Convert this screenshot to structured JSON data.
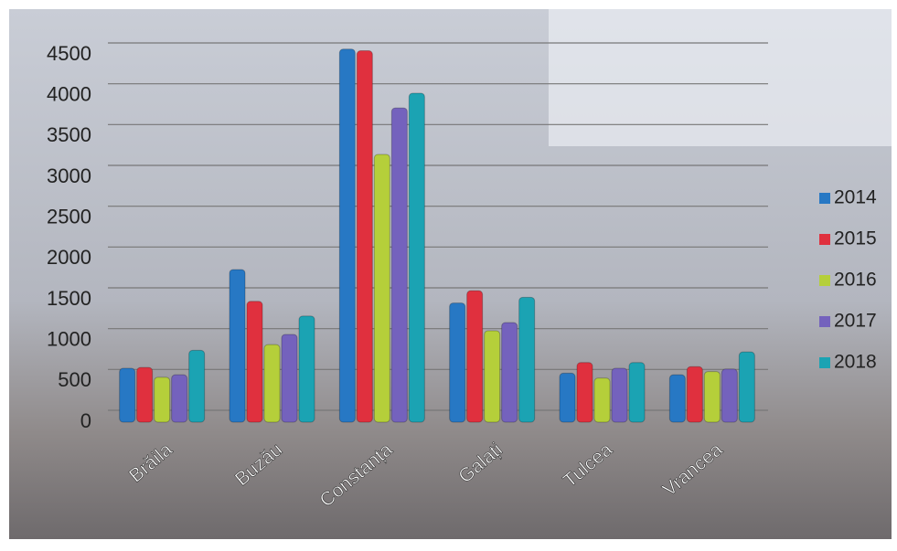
{
  "chart_data": {
    "type": "bar",
    "categories": [
      "Brăila",
      "Buzău",
      "Constanța",
      "Galați",
      "Tulcea",
      "Vrancea"
    ],
    "series": [
      {
        "name": "2014",
        "color": "#2778c4",
        "values": [
          660,
          1870,
          4570,
          1460,
          600,
          580
        ]
      },
      {
        "name": "2015",
        "color": "#e0303e",
        "values": [
          670,
          1480,
          4550,
          1610,
          730,
          680
        ]
      },
      {
        "name": "2016",
        "color": "#b5cf3a",
        "values": [
          550,
          950,
          3280,
          1120,
          540,
          620
        ]
      },
      {
        "name": "2017",
        "color": "#7462bd",
        "values": [
          580,
          1075,
          3850,
          1220,
          660,
          650
        ]
      },
      {
        "name": "2018",
        "color": "#1ba3b3",
        "values": [
          880,
          1300,
          4030,
          1530,
          730,
          860
        ]
      }
    ],
    "ylim": [
      0,
      4700
    ],
    "yticks": [
      0,
      500,
      1000,
      1500,
      2000,
      2500,
      3000,
      3500,
      4000,
      4500
    ],
    "grid": true,
    "legend": "right"
  }
}
